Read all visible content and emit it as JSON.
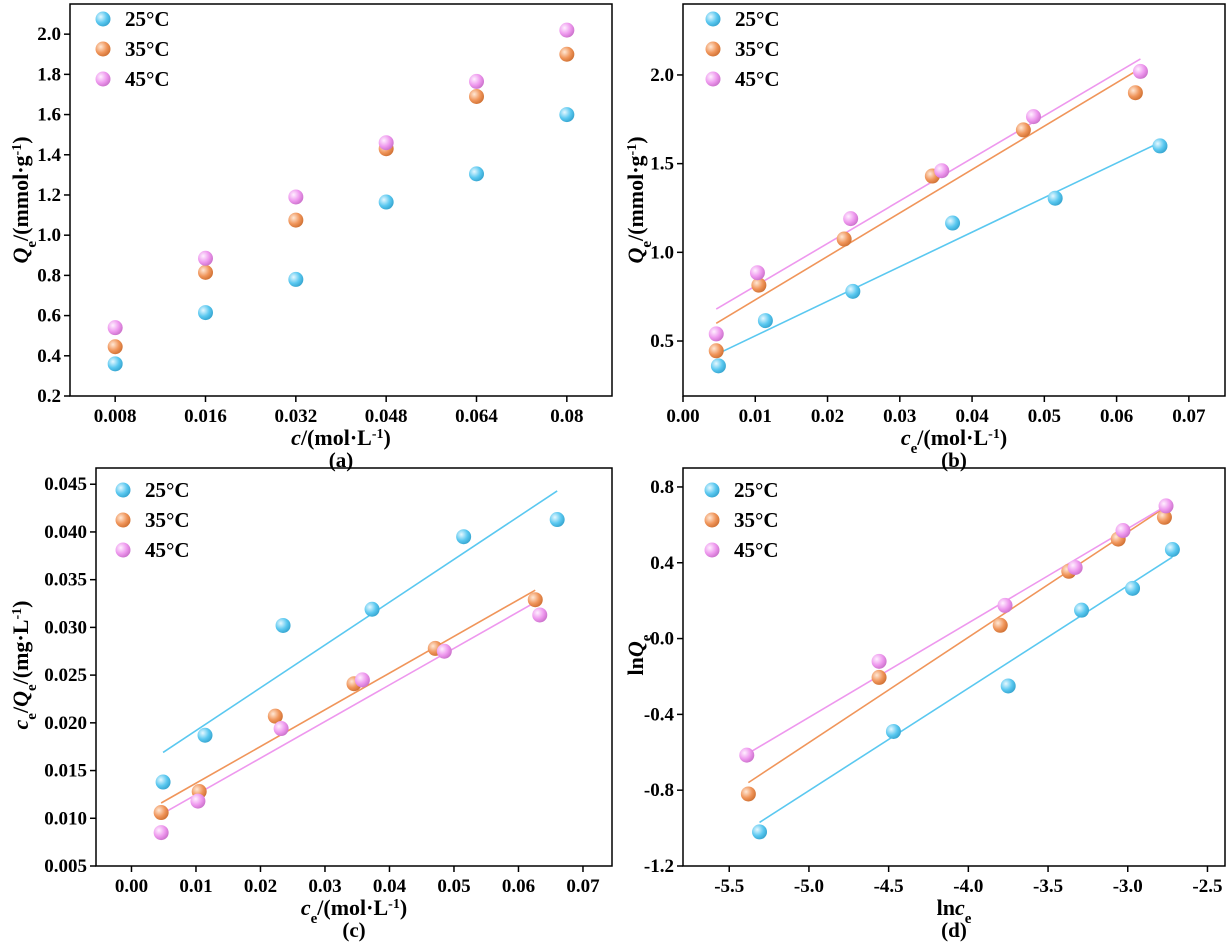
{
  "figure": {
    "colors": {
      "25C": "#5ac8f0",
      "35C": "#f0955a",
      "45C": "#ee98ee"
    },
    "icon_name": "sphere-marker-icon"
  },
  "chart_data": [
    {
      "id": "a",
      "type": "scatter",
      "caption": "(a)",
      "xlabel": "c/(mol·L-1)",
      "ylabel": "Qe/(mmol·g-1)",
      "x_is_categorical": true,
      "categories": [
        "0.008",
        "0.016",
        "0.032",
        "0.048",
        "0.064",
        "0.08"
      ],
      "xlim": [
        -0.5,
        5.5
      ],
      "ylim": [
        0.2,
        2.15
      ],
      "xticks": [
        0,
        1,
        2,
        3,
        4,
        5
      ],
      "xtick_labels": [
        "0.008",
        "0.016",
        "0.032",
        "0.048",
        "0.064",
        "0.08"
      ],
      "yticks": [
        0.2,
        0.4,
        0.6,
        0.8,
        1.0,
        1.2,
        1.4,
        1.6,
        1.8,
        2.0
      ],
      "ytick_labels": [
        "0.2",
        "0.4",
        "0.6",
        "0.8",
        "1.0",
        "1.2",
        "1.4",
        "1.6",
        "1.8",
        "2.0"
      ],
      "legend_position": "top-left",
      "series": [
        {
          "name": "25°C",
          "key": "25C",
          "x": [
            0,
            1,
            2,
            3,
            4,
            5
          ],
          "y": [
            0.36,
            0.615,
            0.78,
            1.165,
            1.305,
            1.6
          ]
        },
        {
          "name": "35°C",
          "key": "35C",
          "x": [
            0,
            1,
            2,
            3,
            4,
            5
          ],
          "y": [
            0.445,
            0.815,
            1.075,
            1.43,
            1.69,
            1.9
          ]
        },
        {
          "name": "45°C",
          "key": "45C",
          "x": [
            0,
            1,
            2,
            3,
            4,
            5
          ],
          "y": [
            0.54,
            0.885,
            1.19,
            1.46,
            1.765,
            2.02
          ]
        }
      ]
    },
    {
      "id": "b",
      "type": "scatter",
      "caption": "(b)",
      "xlabel": "ce/(mol·L-1)",
      "ylabel": "Qe/(mmol·g-1)",
      "xlim": [
        0.0,
        0.075
      ],
      "ylim": [
        0.19,
        2.4
      ],
      "xticks": [
        0.0,
        0.01,
        0.02,
        0.03,
        0.04,
        0.05,
        0.06,
        0.07
      ],
      "xtick_labels": [
        "0.00",
        "0.01",
        "0.02",
        "0.03",
        "0.04",
        "0.05",
        "0.06",
        "0.07"
      ],
      "yticks": [
        0.5,
        1.0,
        1.5,
        2.0
      ],
      "ytick_labels": [
        "0.5",
        "1.0",
        "1.5",
        "2.0"
      ],
      "legend_position": "top-left",
      "series": [
        {
          "name": "25°C",
          "key": "25C",
          "x": [
            0.0049,
            0.0114,
            0.0235,
            0.0373,
            0.0515,
            0.066
          ],
          "y": [
            0.36,
            0.615,
            0.78,
            1.165,
            1.305,
            1.6
          ],
          "fit": [
            [
              0.0049,
              0.43
            ],
            [
              0.066,
              1.62
            ]
          ]
        },
        {
          "name": "35°C",
          "key": "35C",
          "x": [
            0.0046,
            0.0105,
            0.0223,
            0.0345,
            0.0471,
            0.0626
          ],
          "y": [
            0.445,
            0.815,
            1.075,
            1.43,
            1.69,
            1.9
          ],
          "fit": [
            [
              0.0046,
              0.6
            ],
            [
              0.0626,
              2.02
            ]
          ]
        },
        {
          "name": "45°C",
          "key": "45C",
          "x": [
            0.0046,
            0.0103,
            0.0232,
            0.0358,
            0.0485,
            0.0633
          ],
          "y": [
            0.54,
            0.885,
            1.19,
            1.46,
            1.765,
            2.02
          ],
          "fit": [
            [
              0.0046,
              0.68
            ],
            [
              0.0633,
              2.09
            ]
          ]
        }
      ]
    },
    {
      "id": "c",
      "type": "scatter",
      "caption": "(c)",
      "xlabel": "ce/(mol·L-1)",
      "ylabel": "ce/Qe/(mg·L-1)",
      "xlim": [
        -0.0055,
        0.0745
      ],
      "ylim": [
        0.005,
        0.0467
      ],
      "xticks": [
        0.0,
        0.01,
        0.02,
        0.03,
        0.04,
        0.05,
        0.06,
        0.07
      ],
      "xtick_labels": [
        "0.00",
        "0.01",
        "0.02",
        "0.03",
        "0.04",
        "0.05",
        "0.06",
        "0.07"
      ],
      "yticks": [
        0.005,
        0.01,
        0.015,
        0.02,
        0.025,
        0.03,
        0.035,
        0.04,
        0.045
      ],
      "ytick_labels": [
        "0.005",
        "0.010",
        "0.015",
        "0.020",
        "0.025",
        "0.030",
        "0.035",
        "0.040",
        "0.045"
      ],
      "legend_position": "top-left",
      "series": [
        {
          "name": "25°C",
          "key": "25C",
          "x": [
            0.0049,
            0.0114,
            0.0235,
            0.0373,
            0.0515,
            0.066
          ],
          "y": [
            0.0138,
            0.0187,
            0.0302,
            0.0319,
            0.0395,
            0.0413
          ],
          "fit": [
            [
              0.0049,
              0.0169
            ],
            [
              0.066,
              0.0443
            ]
          ]
        },
        {
          "name": "35°C",
          "key": "35C",
          "x": [
            0.0046,
            0.0105,
            0.0223,
            0.0345,
            0.0471,
            0.0626
          ],
          "y": [
            0.0106,
            0.0128,
            0.0207,
            0.0241,
            0.0278,
            0.0329
          ],
          "fit": [
            [
              0.0046,
              0.0116
            ],
            [
              0.0626,
              0.0339
            ]
          ]
        },
        {
          "name": "45°C",
          "key": "45C",
          "x": [
            0.0046,
            0.0103,
            0.0232,
            0.0358,
            0.0485,
            0.0633
          ],
          "y": [
            0.0085,
            0.0118,
            0.0194,
            0.0245,
            0.0275,
            0.0313
          ],
          "fit": [
            [
              0.0046,
              0.0104
            ],
            [
              0.0633,
              0.0329
            ]
          ]
        }
      ]
    },
    {
      "id": "d",
      "type": "scatter",
      "caption": "(d)",
      "xlabel": "lnce",
      "ylabel": "lnQe",
      "xlim": [
        -5.79,
        -2.39
      ],
      "ylim": [
        -1.2,
        0.9
      ],
      "xticks": [
        -5.5,
        -5.0,
        -4.5,
        -4.0,
        -3.5,
        -3.0,
        -2.5
      ],
      "xtick_labels": [
        "-5.5",
        "-5.0",
        "-4.5",
        "-4.0",
        "-3.5",
        "-3.0",
        "-2.5"
      ],
      "yticks": [
        -1.2,
        -0.8,
        -0.4,
        0.0,
        0.4,
        0.8
      ],
      "ytick_labels": [
        "-1.2",
        "-0.8",
        "-0.4",
        "0.0",
        "0.4",
        "0.8"
      ],
      "legend_position": "top-left",
      "series": [
        {
          "name": "25°C",
          "key": "25C",
          "x": [
            -5.31,
            -4.47,
            -3.75,
            -3.29,
            -2.97,
            -2.72
          ],
          "y": [
            -1.02,
            -0.49,
            -0.25,
            0.15,
            0.265,
            0.47
          ],
          "fit": [
            [
              -5.31,
              -0.97
            ],
            [
              -2.72,
              0.43
            ]
          ]
        },
        {
          "name": "35°C",
          "key": "35C",
          "x": [
            -5.38,
            -4.56,
            -3.8,
            -3.37,
            -3.06,
            -2.77
          ],
          "y": [
            -0.82,
            -0.205,
            0.07,
            0.355,
            0.525,
            0.64
          ],
          "fit": [
            [
              -5.38,
              -0.76
            ],
            [
              -2.77,
              0.69
            ]
          ]
        },
        {
          "name": "45°C",
          "key": "45C",
          "x": [
            -5.39,
            -4.56,
            -3.77,
            -3.33,
            -3.03,
            -2.76
          ],
          "y": [
            -0.615,
            -0.12,
            0.175,
            0.375,
            0.57,
            0.7
          ],
          "fit": [
            [
              -5.39,
              -0.61
            ],
            [
              -2.76,
              0.7
            ]
          ]
        }
      ]
    }
  ]
}
